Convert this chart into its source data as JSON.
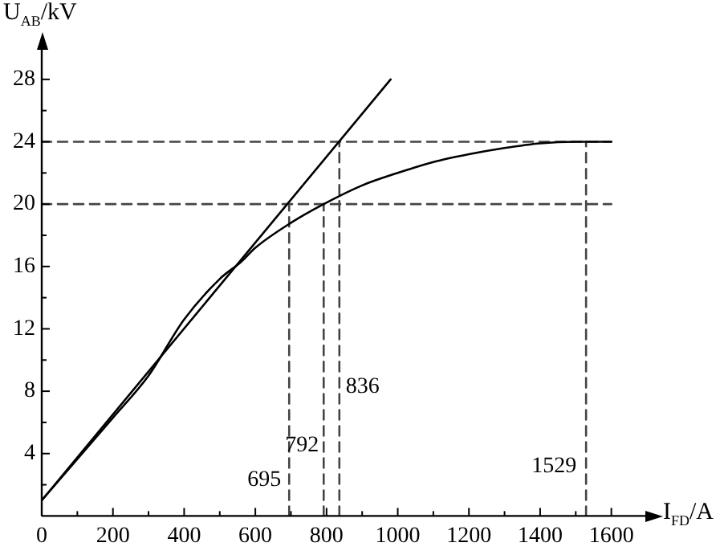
{
  "chart_data": {
    "type": "line",
    "xlabel": "I$_{FD}$/A",
    "ylabel": "U$_{AB}$/kV",
    "xlim": [
      0,
      1700
    ],
    "ylim": [
      0,
      30
    ],
    "xticks": [
      0,
      {
        "value": 100,
        "label": null
      },
      200,
      {
        "value": 300,
        "label": null
      },
      400,
      {
        "value": 500,
        "label": null
      },
      600,
      {
        "value": 700,
        "label": null
      },
      800,
      {
        "value": 900,
        "label": null
      },
      1000,
      {
        "value": 1100,
        "label": null
      },
      1200,
      {
        "value": 1300,
        "label": null
      },
      1400,
      {
        "value": 1500,
        "label": null
      },
      1600
    ],
    "yticks": [
      {
        "value": 2,
        "label": null
      },
      4,
      {
        "value": 6,
        "label": null
      },
      8,
      {
        "value": 10,
        "label": null
      },
      12,
      {
        "value": 14,
        "label": null
      },
      16,
      {
        "value": 18,
        "label": null
      },
      20,
      {
        "value": 22,
        "label": null
      },
      24,
      {
        "value": 26,
        "label": null
      },
      28
    ],
    "grid": false,
    "legend": false,
    "marker": "none",
    "series": [
      {
        "color": "#000000",
        "line_style": "solid",
        "x": [
          0,
          980
        ],
        "values": [
          1,
          28
        ]
      },
      {
        "color": "#000000",
        "line_style": "solid",
        "x": [
          0,
          200,
          300,
          400,
          500,
          560,
          600,
          700,
          792,
          900,
          1000,
          1100,
          1200,
          1300,
          1400,
          1500,
          1600
        ],
        "values": [
          1,
          6.3,
          9,
          12.6,
          15.2,
          16.3,
          17.2,
          18.8,
          20,
          21.2,
          22,
          22.7,
          23.2,
          23.6,
          23.9,
          24,
          24
        ]
      },
      {
        "color": "#444444",
        "line_style": "dashed",
        "x": [
          0,
          1600
        ],
        "values": [
          20,
          20
        ]
      },
      {
        "color": "#444444",
        "line_style": "dashed",
        "x": [
          0,
          1600
        ],
        "values": [
          24,
          24
        ]
      },
      {
        "color": "#444444",
        "line_style": "dashed",
        "x": [
          695,
          695
        ],
        "values": [
          0,
          20
        ]
      },
      {
        "color": "#444444",
        "line_style": "dashed",
        "x": [
          792,
          792
        ],
        "values": [
          0,
          20
        ]
      },
      {
        "color": "#444444",
        "line_style": "dashed",
        "x": [
          836,
          836
        ],
        "values": [
          0,
          24
        ]
      },
      {
        "color": "#444444",
        "line_style": "dashed",
        "x": [
          1529,
          1529
        ],
        "values": [
          0,
          24
        ]
      }
    ],
    "annotations": [
      {
        "text": "695",
        "x": 695,
        "y": 2.3
      },
      {
        "text": "792",
        "x": 792,
        "y": 4.5
      },
      {
        "text": "836",
        "x": 836,
        "y": 8.3
      },
      {
        "text": "1529",
        "x": 1529,
        "y": 3.2
      }
    ]
  }
}
